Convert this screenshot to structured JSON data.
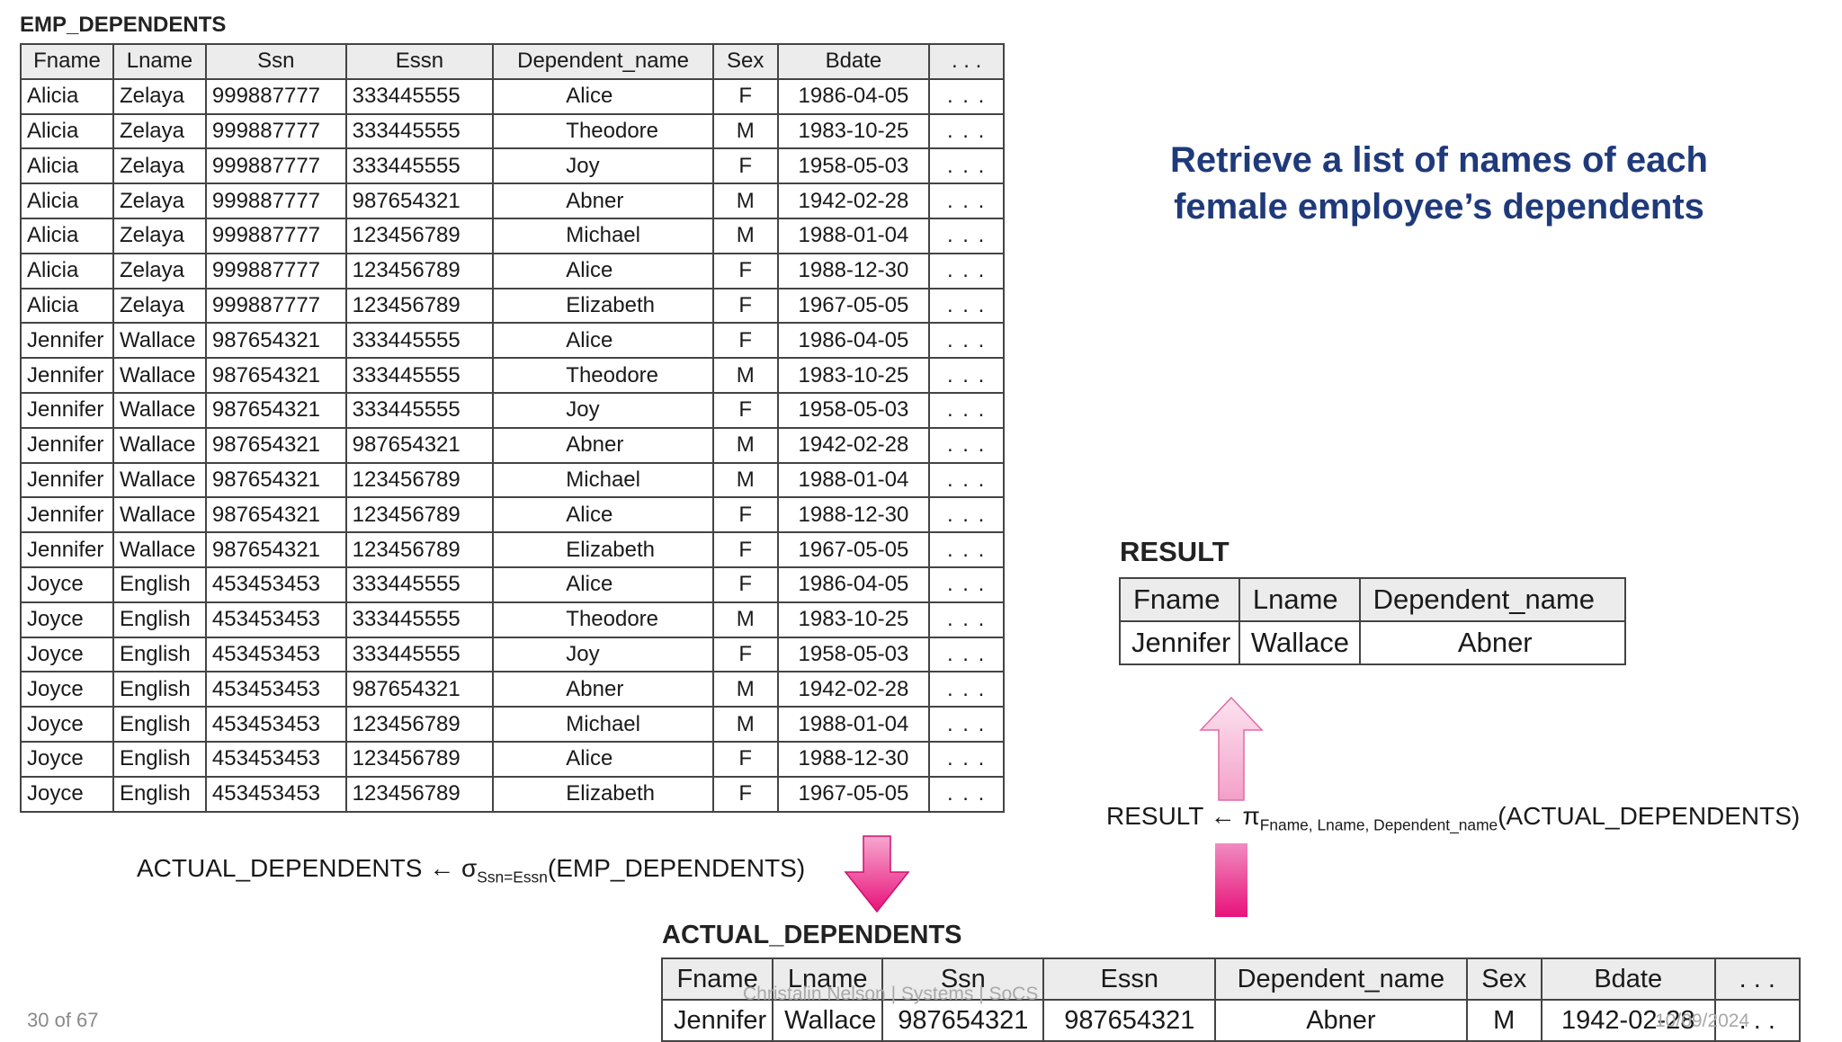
{
  "slide": {
    "title": "Retrieve a list of names of each female employee’s dependents"
  },
  "emp_dependents": {
    "caption": "EMP_DEPENDENTS",
    "headers": [
      "Fname",
      "Lname",
      "Ssn",
      "Essn",
      "Dependent_name",
      "Sex",
      "Bdate",
      ". . ."
    ],
    "rows": [
      [
        "Alicia",
        "Zelaya",
        "999887777",
        "333445555",
        "Alice",
        "F",
        "1986-04-05",
        ". . ."
      ],
      [
        "Alicia",
        "Zelaya",
        "999887777",
        "333445555",
        "Theodore",
        "M",
        "1983-10-25",
        ". . ."
      ],
      [
        "Alicia",
        "Zelaya",
        "999887777",
        "333445555",
        "Joy",
        "F",
        "1958-05-03",
        ". . ."
      ],
      [
        "Alicia",
        "Zelaya",
        "999887777",
        "987654321",
        "Abner",
        "M",
        "1942-02-28",
        ". . ."
      ],
      [
        "Alicia",
        "Zelaya",
        "999887777",
        "123456789",
        "Michael",
        "M",
        "1988-01-04",
        ". . ."
      ],
      [
        "Alicia",
        "Zelaya",
        "999887777",
        "123456789",
        "Alice",
        "F",
        "1988-12-30",
        ". . ."
      ],
      [
        "Alicia",
        "Zelaya",
        "999887777",
        "123456789",
        "Elizabeth",
        "F",
        "1967-05-05",
        ". . ."
      ],
      [
        "Jennifer",
        "Wallace",
        "987654321",
        "333445555",
        "Alice",
        "F",
        "1986-04-05",
        ". . ."
      ],
      [
        "Jennifer",
        "Wallace",
        "987654321",
        "333445555",
        "Theodore",
        "M",
        "1983-10-25",
        ". . ."
      ],
      [
        "Jennifer",
        "Wallace",
        "987654321",
        "333445555",
        "Joy",
        "F",
        "1958-05-03",
        ". . ."
      ],
      [
        "Jennifer",
        "Wallace",
        "987654321",
        "987654321",
        "Abner",
        "M",
        "1942-02-28",
        ". . ."
      ],
      [
        "Jennifer",
        "Wallace",
        "987654321",
        "123456789",
        "Michael",
        "M",
        "1988-01-04",
        ". . ."
      ],
      [
        "Jennifer",
        "Wallace",
        "987654321",
        "123456789",
        "Alice",
        "F",
        "1988-12-30",
        ". . ."
      ],
      [
        "Jennifer",
        "Wallace",
        "987654321",
        "123456789",
        "Elizabeth",
        "F",
        "1967-05-05",
        ". . ."
      ],
      [
        "Joyce",
        "English",
        "453453453",
        "333445555",
        "Alice",
        "F",
        "1986-04-05",
        ". . ."
      ],
      [
        "Joyce",
        "English",
        "453453453",
        "333445555",
        "Theodore",
        "M",
        "1983-10-25",
        ". . ."
      ],
      [
        "Joyce",
        "English",
        "453453453",
        "333445555",
        "Joy",
        "F",
        "1958-05-03",
        ". . ."
      ],
      [
        "Joyce",
        "English",
        "453453453",
        "987654321",
        "Abner",
        "M",
        "1942-02-28",
        ". . ."
      ],
      [
        "Joyce",
        "English",
        "453453453",
        "123456789",
        "Michael",
        "M",
        "1988-01-04",
        ". . ."
      ],
      [
        "Joyce",
        "English",
        "453453453",
        "123456789",
        "Alice",
        "F",
        "1988-12-30",
        ". . ."
      ],
      [
        "Joyce",
        "English",
        "453453453",
        "123456789",
        "Elizabeth",
        "F",
        "1967-05-05",
        ". . ."
      ]
    ]
  },
  "select_formula": {
    "lhs": "ACTUAL_DEPENDENTS",
    "arrow": "←",
    "op": "σ",
    "condition": "Ssn=Essn",
    "arg": "(EMP_DEPENDENTS)"
  },
  "result": {
    "caption": "RESULT",
    "headers": [
      "Fname",
      "Lname",
      "Dependent_name"
    ],
    "rows": [
      [
        "Jennifer",
        "Wallace",
        "Abner"
      ]
    ]
  },
  "project_formula": {
    "lhs": "RESULT",
    "arrow": "←",
    "op": "π",
    "attributes": "Fname, Lname, Dependent_name",
    "arg": "(ACTUAL_DEPENDENTS)"
  },
  "actual_dependents": {
    "caption": "ACTUAL_DEPENDENTS",
    "headers": [
      "Fname",
      "Lname",
      "Ssn",
      "Essn",
      "Dependent_name",
      "Sex",
      "Bdate",
      ". . ."
    ],
    "rows": [
      [
        "Jennifer",
        "Wallace",
        "987654321",
        "987654321",
        "Abner",
        "M",
        "1942-02-28",
        ". . ."
      ]
    ]
  },
  "footer": {
    "page": "30 of 67",
    "author": "Christalin Nelson | Systems | SoCS",
    "date": "10/09/2024"
  },
  "colors": {
    "title": "#1f3a7a",
    "arrow_light": "#fbd0e6",
    "arrow_dark": "#e8127a"
  }
}
